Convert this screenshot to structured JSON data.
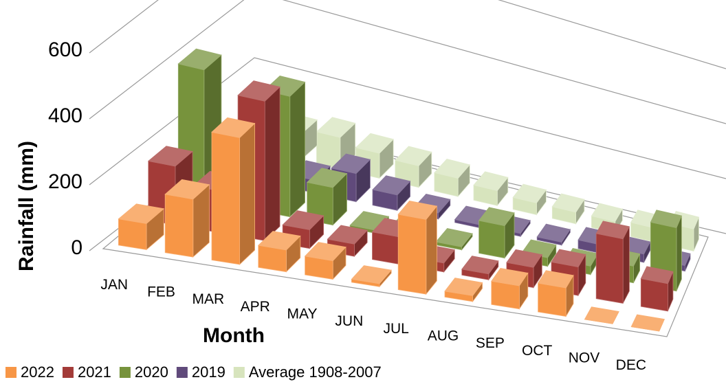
{
  "chart_data": {
    "type": "bar3d",
    "y_label": "Rainfall (mm)",
    "x_label": "Month",
    "categories": [
      "JAN",
      "FEB",
      "MAR",
      "APR",
      "MAY",
      "JUN",
      "JUL",
      "AUG",
      "SEP",
      "OCT",
      "NOV",
      "DEC"
    ],
    "series": [
      {
        "name": "2022",
        "color": "#f79646",
        "values": [
          80,
          180,
          400,
          70,
          60,
          10,
          250,
          20,
          80,
          100,
          0,
          0
        ]
      },
      {
        "name": "2021",
        "color": "#a33b38",
        "values": [
          180,
          130,
          440,
          60,
          40,
          90,
          30,
          20,
          70,
          100,
          230,
          100
        ]
      },
      {
        "name": "2020",
        "color": "#77933c",
        "values": [
          400,
          150,
          380,
          120,
          10,
          40,
          10,
          110,
          30,
          30,
          60,
          230
        ]
      },
      {
        "name": "2019",
        "color": "#604a7b",
        "values": [
          20,
          60,
          40,
          90,
          50,
          20,
          10,
          10,
          10,
          30,
          30,
          20
        ]
      },
      {
        "name": "Average 1908-2007",
        "color": "#d7e4bd",
        "values": [
          60,
          80,
          100,
          80,
          70,
          60,
          50,
          40,
          40,
          40,
          50,
          80
        ]
      }
    ],
    "ylim": [
      0,
      600
    ],
    "yticks": [
      0,
      200,
      400,
      600
    ],
    "grid": true
  }
}
